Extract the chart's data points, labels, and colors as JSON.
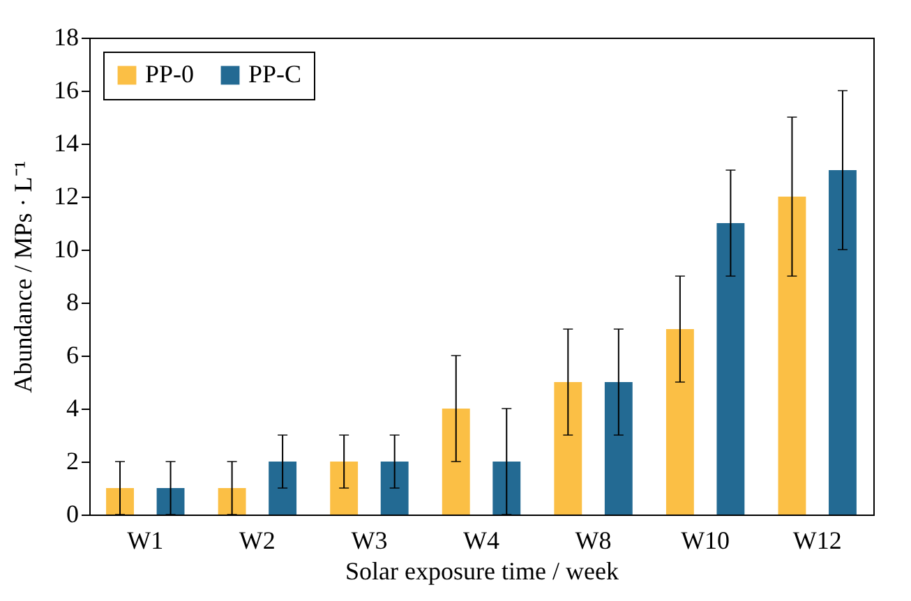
{
  "chart_data": {
    "type": "bar",
    "xlabel": "Solar exposure time / week",
    "ylabel": "Abundance / MPs · L⁻¹",
    "categories": [
      "W1",
      "W2",
      "W3",
      "W4",
      "W8",
      "W10",
      "W12"
    ],
    "series": [
      {
        "name": "PP-0",
        "color": "#fbbf45",
        "values": [
          1,
          1,
          2,
          4,
          5,
          7,
          12
        ],
        "errors": [
          1,
          1,
          1,
          2,
          2,
          2,
          3
        ]
      },
      {
        "name": "PP-C",
        "color": "#236a93",
        "values": [
          1,
          2,
          2,
          2,
          5,
          11,
          13
        ],
        "errors": [
          1,
          1,
          1,
          2,
          2,
          2,
          3
        ]
      }
    ],
    "ylim": [
      0,
      18
    ],
    "yticks": [
      0,
      2,
      4,
      6,
      8,
      10,
      12,
      14,
      16,
      18
    ],
    "grid": false,
    "legend": "top left"
  }
}
